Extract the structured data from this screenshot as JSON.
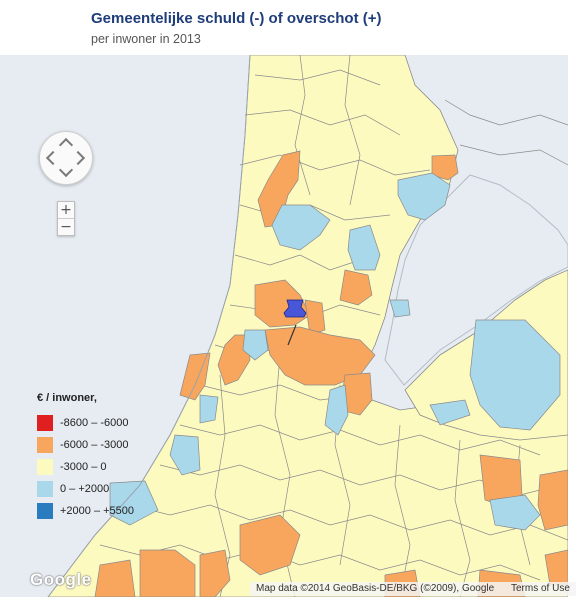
{
  "header": {
    "title": "Gemeentelijke schuld (-) of overschot (+)",
    "subtitle": "per inwoner in 2013"
  },
  "controls": {
    "zoom_in": "+",
    "zoom_out": "−"
  },
  "legend": {
    "title": "€ / inwoner,",
    "items": [
      {
        "label": "-8600 – -6000",
        "color": "#e02020"
      },
      {
        "label": "-6000 – -3000",
        "color": "#f8a65e"
      },
      {
        "label": "-3000 – 0",
        "color": "#fdfac0"
      },
      {
        "label": "0 – +2000",
        "color": "#a9d8ea"
      },
      {
        "label": "+2000 – +5500",
        "color": "#2b7bbf"
      }
    ]
  },
  "map": {
    "water_color": "#e6ecf2",
    "border_color": "#8a8a8a",
    "marker_color": "#4a56d8"
  },
  "footer": {
    "logo": "Google",
    "attribution": "Map data ©2014 GeoBasis-DE/BKG (©2009), Google",
    "terms": "Terms of Use"
  }
}
